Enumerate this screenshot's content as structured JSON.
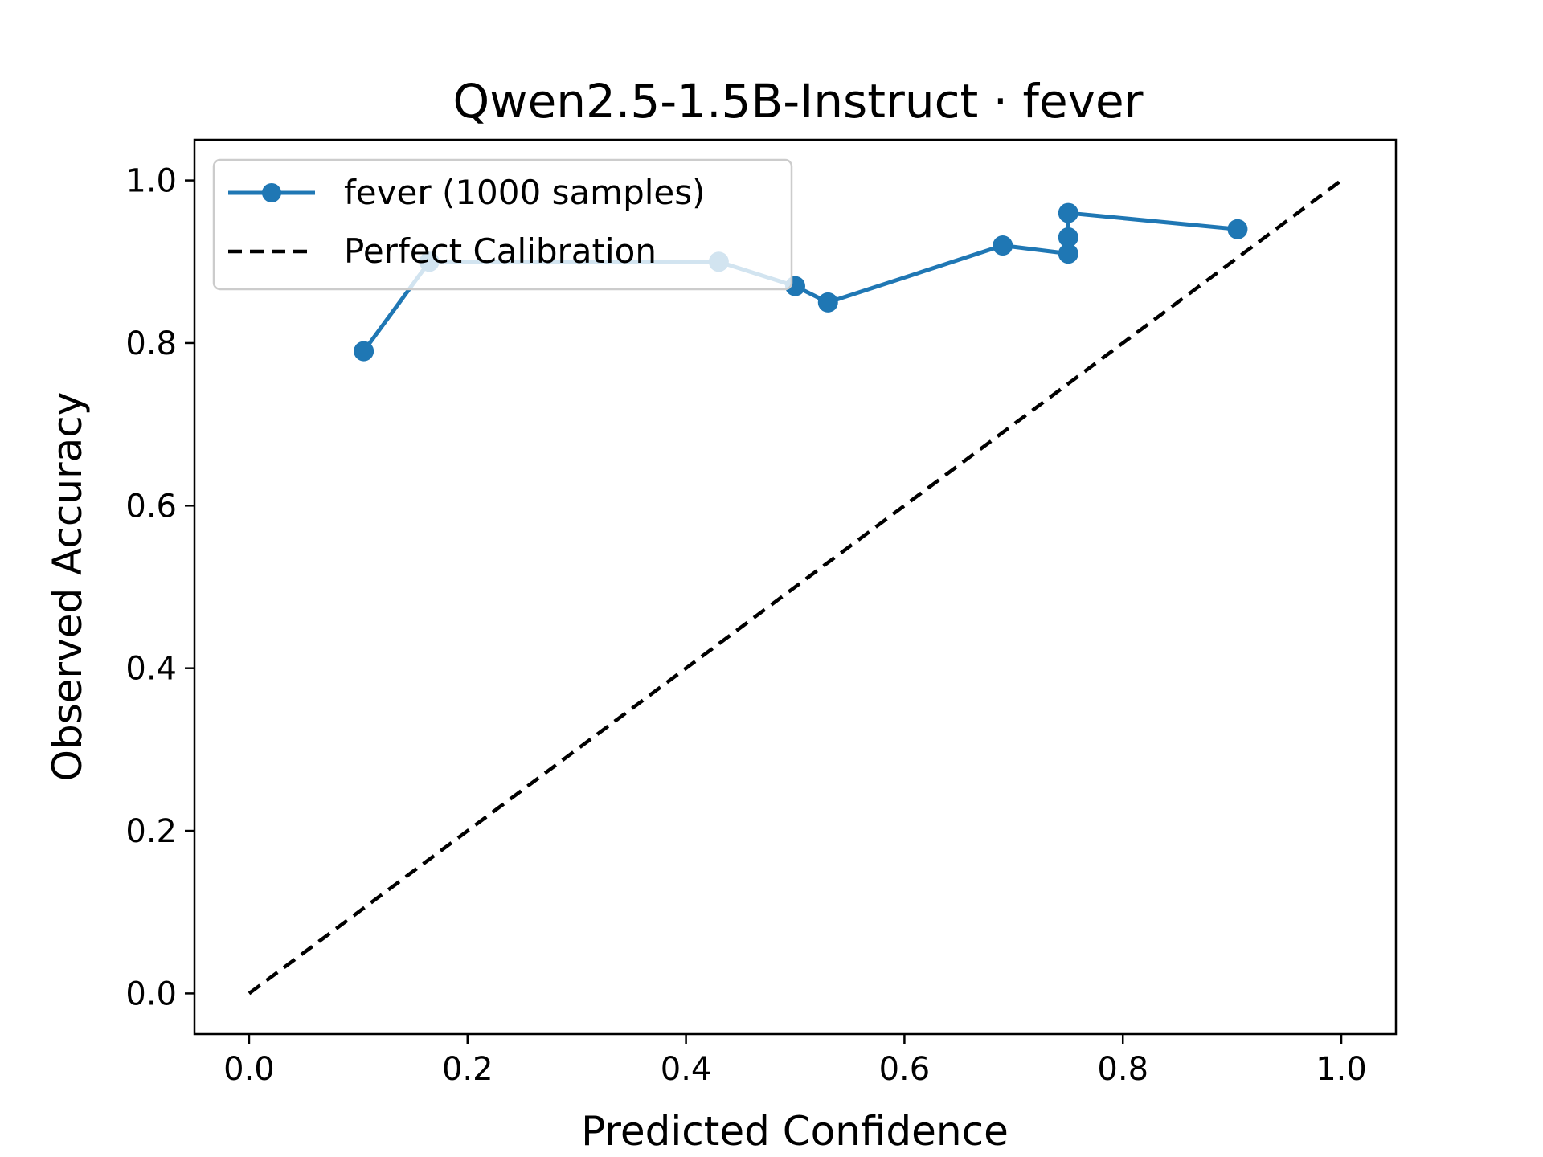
{
  "chart_data": {
    "type": "line",
    "title": "Qwen2.5-1.5B-Instruct · fever",
    "xlabel": "Predicted Confidence",
    "ylabel": "Observed Accuracy",
    "xlim": [
      -0.05,
      1.05
    ],
    "ylim": [
      -0.05,
      1.05
    ],
    "xticks": [
      0.0,
      0.2,
      0.4,
      0.6,
      0.8,
      1.0
    ],
    "yticks": [
      0.0,
      0.2,
      0.4,
      0.6,
      0.8,
      1.0
    ],
    "tick_labels": [
      "0.0",
      "0.2",
      "0.4",
      "0.6",
      "0.8",
      "1.0"
    ],
    "grid": false,
    "legend_position": "top-left",
    "series": [
      {
        "name": "fever (1000 samples)",
        "color": "#1f77b4",
        "style": "solid",
        "marker": "circle",
        "x": [
          0.105,
          0.165,
          0.43,
          0.5,
          0.53,
          0.69,
          0.75,
          0.75,
          0.75,
          0.905
        ],
        "y": [
          0.79,
          0.9,
          0.9,
          0.87,
          0.85,
          0.92,
          0.91,
          0.93,
          0.96,
          0.94
        ]
      },
      {
        "name": "Perfect Calibration",
        "color": "#000000",
        "style": "dashed",
        "marker": "none",
        "x": [
          0.0,
          1.0
        ],
        "y": [
          0.0,
          1.0
        ]
      }
    ]
  }
}
